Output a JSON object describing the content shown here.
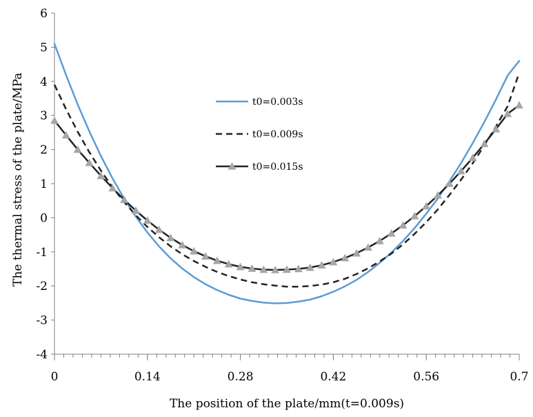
{
  "chart_data": {
    "type": "line",
    "xlabel": "The position of the plate/mm(t=0.009s)",
    "ylabel": "The thermal stress of the plate/MPa",
    "xlim": [
      0,
      0.7
    ],
    "ylim": [
      -4,
      6
    ],
    "x_ticks": [
      0,
      0.14,
      0.28,
      0.42,
      0.56,
      0.7
    ],
    "x_tick_labels": [
      "0",
      "0.14",
      "0.28",
      "0.42",
      "0.56",
      "0.7"
    ],
    "y_ticks": [
      -4,
      -3,
      -2,
      -1,
      0,
      1,
      2,
      3,
      4,
      5,
      6
    ],
    "y_tick_labels": [
      "-4",
      "-3",
      "-2",
      "-1",
      "0",
      "1",
      "2",
      "3",
      "4",
      "5",
      "6"
    ],
    "grid": false,
    "legend_position": "upper-center",
    "x": [
      0,
      0.0175,
      0.035,
      0.0525,
      0.07,
      0.0875,
      0.105,
      0.1225,
      0.14,
      0.1575,
      0.175,
      0.1925,
      0.21,
      0.2275,
      0.245,
      0.2625,
      0.28,
      0.2975,
      0.315,
      0.3325,
      0.35,
      0.3675,
      0.385,
      0.4025,
      0.42,
      0.4375,
      0.455,
      0.4725,
      0.49,
      0.5075,
      0.525,
      0.5425,
      0.56,
      0.5775,
      0.595,
      0.6125,
      0.63,
      0.6475,
      0.665,
      0.6825,
      0.7
    ],
    "series": [
      {
        "name": "t0=0.003s",
        "color": "#5b9bd5",
        "style": "solid",
        "values": [
          5.1,
          4.18,
          3.32,
          2.53,
          1.81,
          1.15,
          0.56,
          0.03,
          -0.43,
          -0.84,
          -1.19,
          -1.49,
          -1.74,
          -1.95,
          -2.12,
          -2.26,
          -2.37,
          -2.44,
          -2.49,
          -2.51,
          -2.5,
          -2.46,
          -2.4,
          -2.3,
          -2.17,
          -2.01,
          -1.82,
          -1.59,
          -1.32,
          -1.02,
          -0.68,
          -0.3,
          0.12,
          0.57,
          1.07,
          1.61,
          2.19,
          2.81,
          3.47,
          4.17,
          4.6
        ]
      },
      {
        "name": "t0=0.009s",
        "color": "#222222",
        "style": "dashed",
        "values": [
          3.9,
          3.18,
          2.52,
          1.92,
          1.38,
          0.89,
          0.46,
          0.07,
          -0.27,
          -0.57,
          -0.84,
          -1.07,
          -1.27,
          -1.44,
          -1.59,
          -1.71,
          -1.81,
          -1.89,
          -1.95,
          -1.99,
          -2.02,
          -2.02,
          -2.0,
          -1.96,
          -1.89,
          -1.79,
          -1.65,
          -1.48,
          -1.28,
          -1.05,
          -0.78,
          -0.47,
          -0.13,
          0.25,
          0.67,
          1.12,
          1.6,
          2.12,
          2.68,
          3.27,
          4.25
        ]
      },
      {
        "name": "t0=0.015s",
        "color": "#222222",
        "style": "solid-triangle-markers",
        "marker_color": "#a6a6a6",
        "values": [
          2.85,
          2.42,
          2.0,
          1.61,
          1.23,
          0.87,
          0.53,
          0.21,
          -0.08,
          -0.35,
          -0.59,
          -0.8,
          -0.98,
          -1.13,
          -1.26,
          -1.36,
          -1.44,
          -1.49,
          -1.52,
          -1.53,
          -1.52,
          -1.5,
          -1.46,
          -1.39,
          -1.3,
          -1.18,
          -1.04,
          -0.87,
          -0.68,
          -0.46,
          -0.22,
          0.05,
          0.34,
          0.66,
          1.0,
          1.37,
          1.76,
          2.17,
          2.6,
          3.05,
          3.3
        ]
      }
    ]
  }
}
